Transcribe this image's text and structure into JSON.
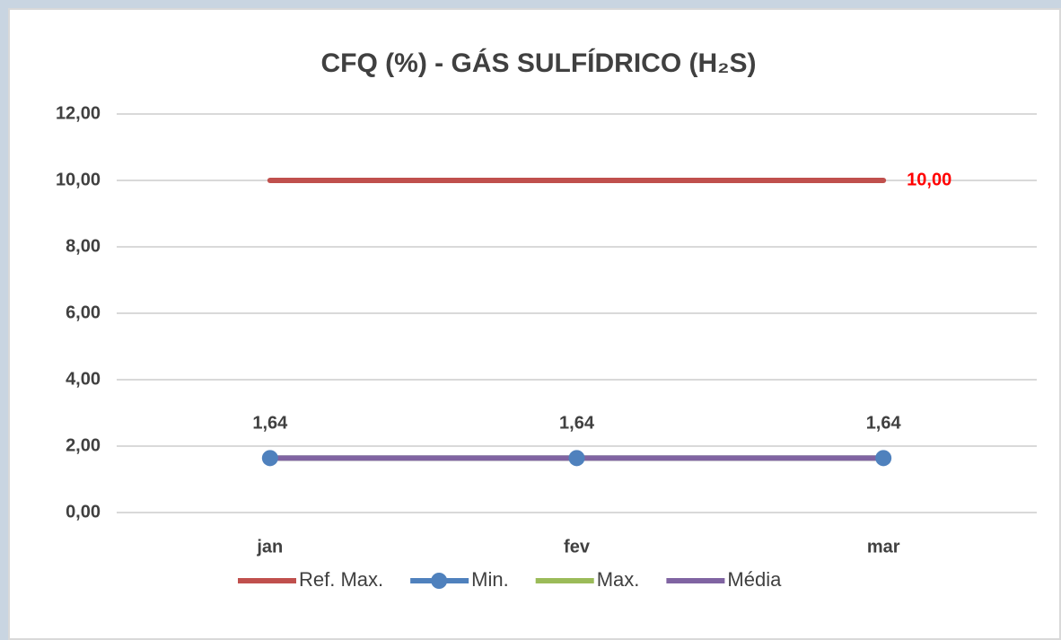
{
  "chart_data": {
    "type": "line",
    "title": "CFQ (%) - GÁS SULFÍDRICO (H₂S)",
    "categories": [
      "jan",
      "fev",
      "mar"
    ],
    "series": [
      {
        "name": "Ref. Max.",
        "color": "#c0504d",
        "values": [
          10,
          10,
          10
        ],
        "value_labels": [
          null,
          null,
          "10,00"
        ],
        "label_color": "#ff0000"
      },
      {
        "name": "Min.",
        "color": "#4f81bd",
        "values": [
          1.64,
          1.64,
          1.64
        ],
        "value_labels": [
          "1,64",
          "1,64",
          "1,64"
        ],
        "marker": true,
        "label_color": "#404040"
      },
      {
        "name": "Max.",
        "color": "#9bbb59",
        "values": [
          1.64,
          1.64,
          1.64
        ]
      },
      {
        "name": "Média",
        "color": "#8064a2",
        "values": [
          1.64,
          1.64,
          1.64
        ]
      }
    ],
    "ylim": [
      0,
      12
    ],
    "yticks": [
      {
        "value": 0,
        "label": "0,00"
      },
      {
        "value": 2,
        "label": "2,00"
      },
      {
        "value": 4,
        "label": "4,00"
      },
      {
        "value": 6,
        "label": "6,00"
      },
      {
        "value": 8,
        "label": "8,00"
      },
      {
        "value": 10,
        "label": "10,00"
      },
      {
        "value": 12,
        "label": "12,00"
      }
    ],
    "grid": true,
    "legend": "bottom"
  }
}
